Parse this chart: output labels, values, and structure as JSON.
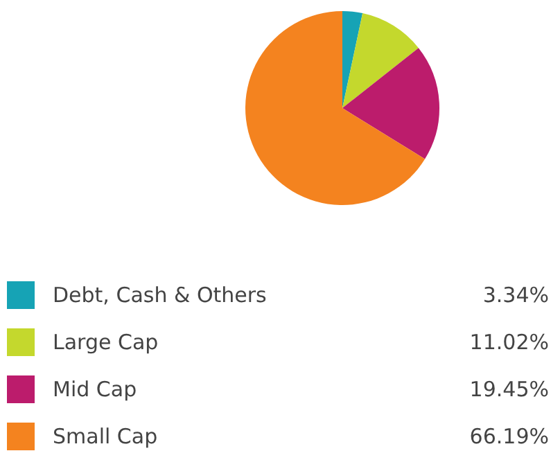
{
  "chart_data": {
    "type": "pie",
    "categories": [
      "Debt, Cash & Others",
      "Large Cap",
      "Mid Cap",
      "Small Cap"
    ],
    "values": [
      3.34,
      11.02,
      19.45,
      66.19
    ],
    "colors": [
      "#16a3b5",
      "#c4d82d",
      "#bc1c6c",
      "#f4831f"
    ],
    "value_labels": [
      "3.34%",
      "11.02%",
      "19.45%",
      "66.19%"
    ],
    "legend": "bottom"
  }
}
